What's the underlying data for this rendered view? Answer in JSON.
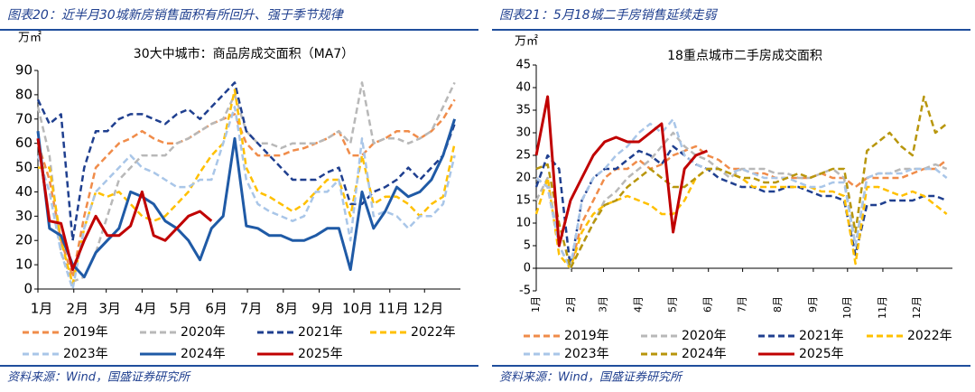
{
  "chart_data": [
    {
      "type": "line",
      "header": "图表20：近半月30城新房销售面积有所回升、强于季节规律",
      "title": "30大中城市：商品房成交面积（MA7）",
      "unit": "万㎡",
      "source": "资料来源：Wind，国盛证券研究所",
      "x": [
        1,
        11,
        21,
        31,
        41,
        51,
        61,
        71,
        81,
        91,
        101,
        111,
        121,
        131,
        141,
        151,
        161,
        171,
        181,
        191,
        201,
        211,
        221,
        231,
        241,
        251,
        261,
        271,
        281,
        291,
        301,
        311,
        321,
        331,
        341,
        351,
        361
      ],
      "xlim": [
        1,
        366
      ],
      "xticks": [
        {
          "value": 1,
          "label": "1月"
        },
        {
          "value": 32,
          "label": "2月"
        },
        {
          "value": 60,
          "label": "3月"
        },
        {
          "value": 91,
          "label": "4月"
        },
        {
          "value": 121,
          "label": "5月"
        },
        {
          "value": 152,
          "label": "6月"
        },
        {
          "value": 182,
          "label": "7月"
        },
        {
          "value": 213,
          "label": "8月"
        },
        {
          "value": 244,
          "label": "9月"
        },
        {
          "value": 274,
          "label": "10月"
        },
        {
          "value": 305,
          "label": "11月"
        },
        {
          "value": 335,
          "label": "12月"
        }
      ],
      "ylim": [
        0,
        90
      ],
      "yticks": [
        0,
        10,
        20,
        30,
        40,
        50,
        60,
        70,
        80,
        90
      ],
      "series": [
        {
          "name": "2019年",
          "color": "#f08c4a",
          "dashed": true,
          "values": [
            60,
            45,
            20,
            5,
            30,
            50,
            55,
            60,
            62,
            65,
            62,
            60,
            60,
            62,
            65,
            68,
            70,
            72,
            60,
            55,
            55,
            55,
            57,
            58,
            60,
            62,
            65,
            55,
            55,
            60,
            62,
            65,
            65,
            62,
            65,
            70,
            78
          ]
        },
        {
          "name": "2020年",
          "color": "#b8b8b8",
          "dashed": true,
          "values": [
            75,
            55,
            15,
            3,
            5,
            15,
            30,
            45,
            50,
            55,
            55,
            55,
            60,
            62,
            65,
            68,
            70,
            80,
            65,
            60,
            60,
            58,
            60,
            60,
            60,
            62,
            65,
            60,
            85,
            60,
            62,
            62,
            60,
            62,
            65,
            75,
            85
          ]
        },
        {
          "name": "2021年",
          "color": "#1f3f8f",
          "dashed": true,
          "values": [
            78,
            68,
            72,
            20,
            50,
            65,
            65,
            70,
            72,
            72,
            70,
            68,
            72,
            74,
            70,
            75,
            80,
            85,
            65,
            60,
            55,
            50,
            45,
            45,
            45,
            48,
            50,
            35,
            35,
            40,
            42,
            45,
            50,
            45,
            50,
            55,
            68
          ]
        },
        {
          "name": "2022年",
          "color": "#ffc000",
          "dashed": true,
          "values": [
            50,
            50,
            20,
            2,
            25,
            40,
            38,
            40,
            35,
            30,
            28,
            30,
            35,
            40,
            48,
            55,
            60,
            82,
            50,
            40,
            38,
            35,
            32,
            35,
            40,
            45,
            45,
            30,
            55,
            35,
            38,
            38,
            35,
            30,
            35,
            38,
            60
          ]
        },
        {
          "name": "2023年",
          "color": "#a9c6e8",
          "dashed": true,
          "values": [
            55,
            40,
            15,
            0,
            25,
            40,
            45,
            50,
            55,
            50,
            48,
            45,
            42,
            42,
            45,
            45,
            60,
            75,
            45,
            35,
            32,
            30,
            28,
            30,
            40,
            40,
            45,
            20,
            62,
            30,
            32,
            30,
            25,
            30,
            30,
            35,
            55
          ]
        },
        {
          "name": "2024年",
          "color": "#1f5aa6",
          "dashed": false,
          "values": [
            65,
            25,
            22,
            10,
            5,
            15,
            20,
            25,
            40,
            38,
            35,
            28,
            25,
            20,
            12,
            25,
            30,
            62,
            26,
            25,
            22,
            22,
            20,
            20,
            22,
            25,
            25,
            8,
            40,
            25,
            32,
            42,
            38,
            40,
            45,
            55,
            70
          ]
        },
        {
          "name": "2025年",
          "color": "#c00000",
          "dashed": false,
          "values": [
            62,
            28,
            27,
            8,
            20,
            30,
            22,
            22,
            26,
            40,
            22,
            20,
            25,
            30,
            32,
            28,
            null,
            null,
            null,
            null,
            null,
            null,
            null,
            null,
            null,
            null,
            null,
            null,
            null,
            null,
            null,
            null,
            null,
            null,
            null,
            null,
            null
          ]
        }
      ]
    },
    {
      "type": "line",
      "header": "图表21：5月18城二手房销售延续走弱",
      "title": "18重点城市二手房成交面积",
      "unit": "万㎡",
      "source": "资料来源：Wind，国盛证券研究所",
      "x": [
        1,
        11,
        21,
        31,
        41,
        51,
        61,
        71,
        81,
        91,
        101,
        111,
        121,
        131,
        141,
        151,
        161,
        171,
        181,
        191,
        201,
        211,
        221,
        231,
        241,
        251,
        261,
        271,
        281,
        291,
        301,
        311,
        321,
        331,
        341,
        351,
        361
      ],
      "xlim": [
        1,
        366
      ],
      "xticks": [
        {
          "value": 1,
          "label": "1月"
        },
        {
          "value": 32,
          "label": "2月"
        },
        {
          "value": 60,
          "label": "3月"
        },
        {
          "value": 91,
          "label": "4月"
        },
        {
          "value": 121,
          "label": "5月"
        },
        {
          "value": 152,
          "label": "6月"
        },
        {
          "value": 182,
          "label": "7月"
        },
        {
          "value": 213,
          "label": "8月"
        },
        {
          "value": 244,
          "label": "9月"
        },
        {
          "value": 274,
          "label": "10月"
        },
        {
          "value": 305,
          "label": "11月"
        },
        {
          "value": 335,
          "label": "12月"
        }
      ],
      "ylim": [
        -5,
        45
      ],
      "yticks": [
        -5,
        0,
        5,
        10,
        15,
        20,
        25,
        30,
        35,
        40,
        45
      ],
      "series": [
        {
          "name": "2019年",
          "color": "#f08c4a",
          "dashed": true,
          "values": [
            20,
            18,
            5,
            0,
            10,
            15,
            20,
            22,
            22,
            24,
            22,
            23,
            25,
            26,
            27,
            25,
            24,
            22,
            22,
            21,
            21,
            20,
            20,
            20,
            20,
            21,
            20,
            20,
            18,
            20,
            20,
            20,
            20,
            21,
            22,
            22,
            24
          ]
        },
        {
          "name": "2020年",
          "color": "#b8b8b8",
          "dashed": true,
          "values": [
            15,
            20,
            5,
            0,
            5,
            10,
            15,
            17,
            20,
            22,
            24,
            27,
            30,
            27,
            25,
            24,
            22,
            20,
            22,
            22,
            22,
            21,
            21,
            20,
            20,
            21,
            22,
            20,
            5,
            20,
            21,
            21,
            22,
            22,
            22,
            23,
            22
          ]
        },
        {
          "name": "2021年",
          "color": "#1f3f8f",
          "dashed": true,
          "values": [
            18,
            25,
            22,
            0,
            15,
            20,
            22,
            22,
            24,
            26,
            25,
            23,
            27,
            25,
            23,
            22,
            20,
            19,
            18,
            18,
            17,
            17,
            18,
            18,
            17,
            16,
            16,
            15,
            3,
            14,
            14,
            15,
            15,
            15,
            16,
            16,
            15
          ]
        },
        {
          "name": "2022年",
          "color": "#ffc000",
          "dashed": true,
          "values": [
            12,
            20,
            3,
            0,
            8,
            12,
            14,
            15,
            16,
            15,
            14,
            12,
            12,
            15,
            20,
            22,
            22,
            21,
            20,
            18,
            18,
            18,
            18,
            18,
            18,
            17,
            17,
            16,
            1,
            18,
            18,
            17,
            16,
            17,
            16,
            14,
            12
          ]
        },
        {
          "name": "2023年",
          "color": "#a9c6e8",
          "dashed": true,
          "values": [
            20,
            18,
            5,
            0,
            15,
            20,
            22,
            25,
            27,
            30,
            32,
            30,
            33,
            25,
            23,
            22,
            22,
            21,
            22,
            21,
            20,
            20,
            20,
            19,
            18,
            18,
            19,
            19,
            5,
            20,
            21,
            21,
            21,
            22,
            22,
            22,
            20
          ]
        },
        {
          "name": "2024年",
          "color": "#b8960c",
          "dashed": true,
          "values": [
            22,
            23,
            10,
            0,
            5,
            10,
            14,
            15,
            18,
            20,
            22,
            20,
            18,
            18,
            20,
            22,
            22,
            21,
            20,
            20,
            19,
            19,
            20,
            21,
            20,
            21,
            22,
            22,
            8,
            26,
            28,
            30,
            27,
            25,
            38,
            30,
            32
          ]
        },
        {
          "name": "2025年",
          "color": "#c00000",
          "dashed": false,
          "values": [
            25,
            38,
            5,
            15,
            20,
            25,
            28,
            29,
            28,
            28,
            30,
            32,
            8,
            22,
            25,
            26,
            null,
            null,
            null,
            null,
            null,
            null,
            null,
            null,
            null,
            null,
            null,
            null,
            null,
            null,
            null,
            null,
            null,
            null,
            null,
            null,
            null
          ]
        }
      ]
    }
  ]
}
